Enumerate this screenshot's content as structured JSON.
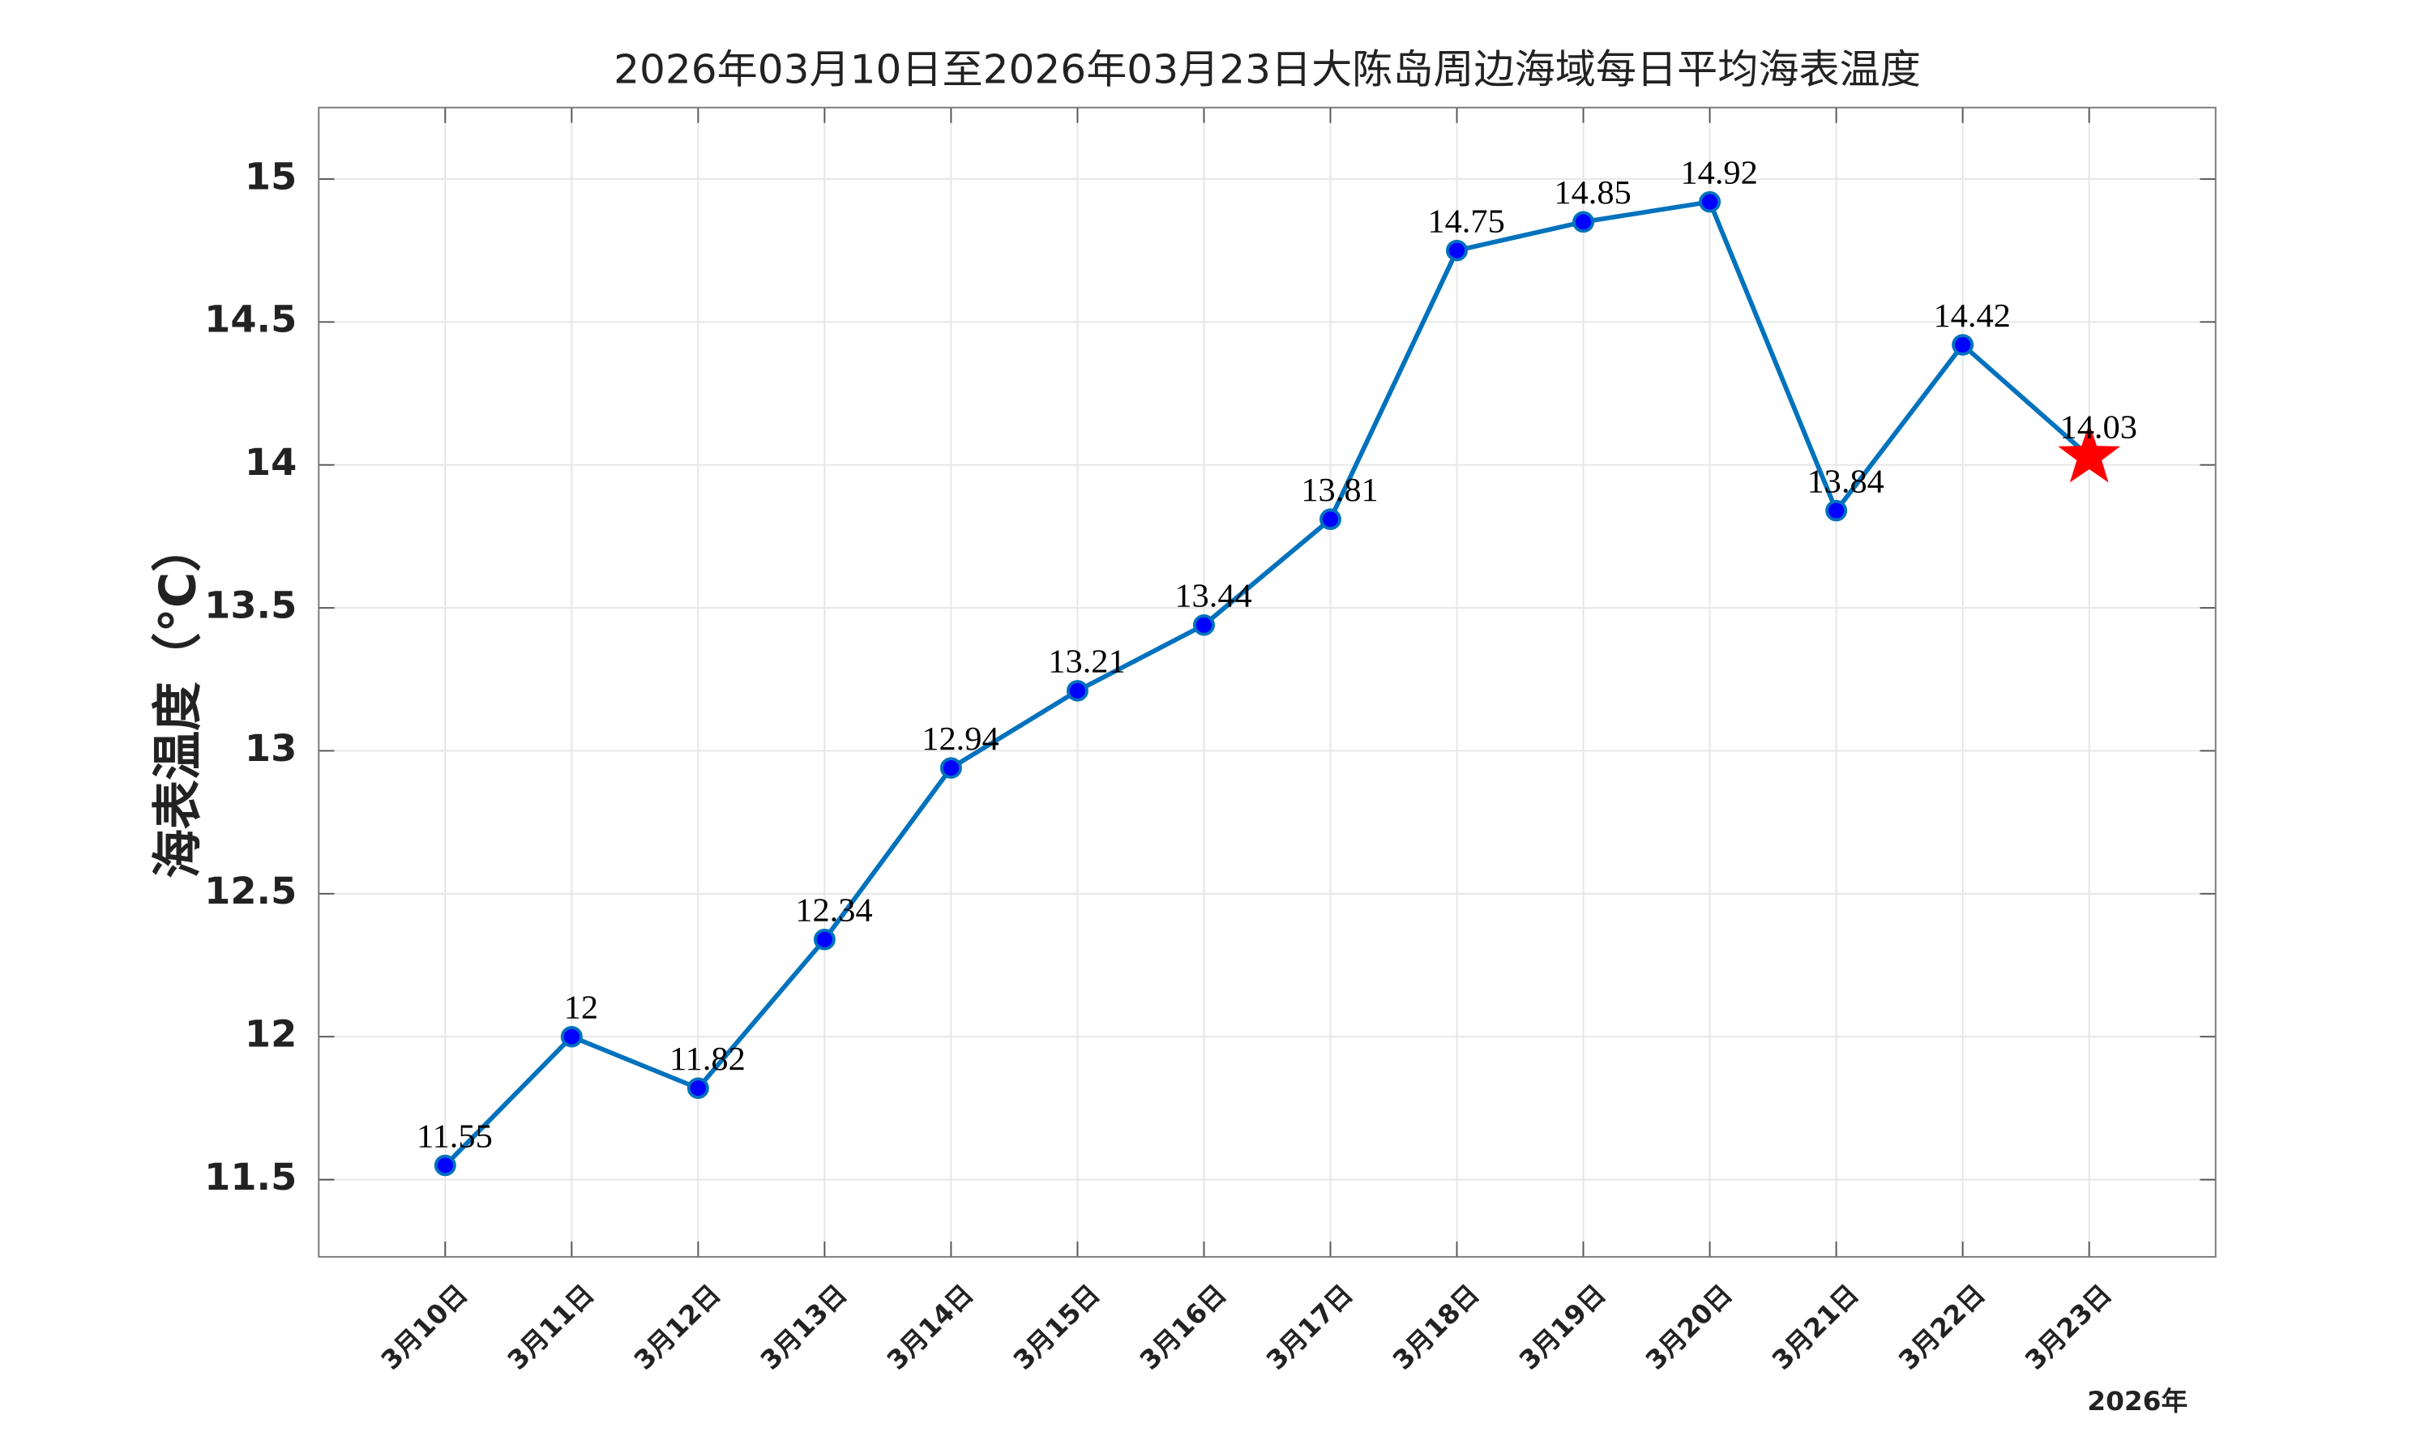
{
  "chart_data": {
    "type": "line",
    "title": "2026年03月10日至2026年03月23日大陈岛周边海域每日平均海表温度",
    "ylabel": "海表温度（°C）",
    "xlabel": "2026年",
    "categories": [
      "3月10日",
      "3月11日",
      "3月12日",
      "3月13日",
      "3月14日",
      "3月15日",
      "3月16日",
      "3月17日",
      "3月18日",
      "3月19日",
      "3月20日",
      "3月21日",
      "3月22日",
      "3月23日"
    ],
    "series": [
      {
        "name": "海表温度",
        "color": "#0072bd",
        "marker_color": "#0000ff",
        "values": [
          11.55,
          12,
          11.82,
          12.34,
          12.94,
          13.21,
          13.44,
          13.81,
          14.75,
          14.85,
          14.92,
          13.84,
          14.42,
          14.03
        ]
      }
    ],
    "highlight_last": {
      "marker": "star",
      "color": "#ff0000"
    },
    "ylim": [
      11.23,
      15.25
    ],
    "yticks": [
      11.5,
      12,
      12.5,
      13,
      13.5,
      14,
      14.5,
      15
    ],
    "grid": true
  }
}
